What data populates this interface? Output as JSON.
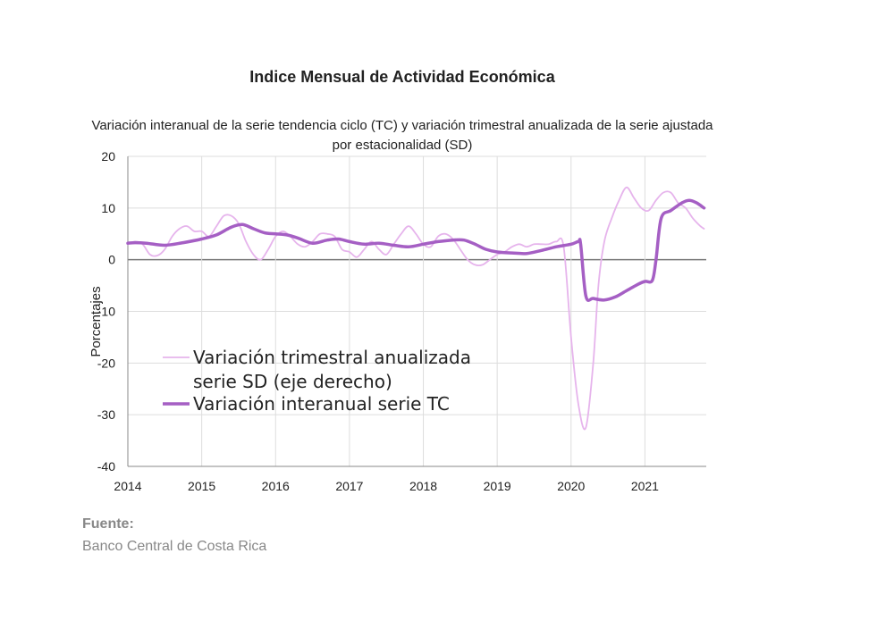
{
  "chart_data": {
    "type": "line",
    "title": "Indice Mensual de  Actividad Económica",
    "subtitle": "Variación interanual de la serie tendencia ciclo (TC) y variación trimestral anualizada de la serie ajustada por estacionalidad (SD)",
    "ylabel": "Porcentajes",
    "xlabel": "",
    "ylim": [
      -40,
      20
    ],
    "xlim": [
      2014.0,
      2021.83
    ],
    "y_ticks": [
      "20",
      "10",
      "0",
      "-10",
      "-20",
      "-30",
      "-40"
    ],
    "x_ticks": [
      "2014",
      "2015",
      "2016",
      "2017",
      "2018",
      "2019",
      "2020",
      "2021"
    ],
    "grid": true,
    "legend_position": "lower-left",
    "series": [
      {
        "name": "Variación trimestral anualizada serie SD (eje derecho)",
        "color": "#e6b4ec",
        "line_width": "thin",
        "x": [
          2014.0,
          2014.1,
          2014.2,
          2014.3,
          2014.4,
          2014.5,
          2014.6,
          2014.7,
          2014.8,
          2014.9,
          2015.0,
          2015.1,
          2015.2,
          2015.3,
          2015.4,
          2015.5,
          2015.6,
          2015.7,
          2015.8,
          2015.9,
          2016.0,
          2016.1,
          2016.2,
          2016.3,
          2016.4,
          2016.5,
          2016.6,
          2016.7,
          2016.8,
          2016.9,
          2017.0,
          2017.1,
          2017.2,
          2017.3,
          2017.4,
          2017.5,
          2017.6,
          2017.7,
          2017.8,
          2017.9,
          2018.0,
          2018.1,
          2018.2,
          2018.3,
          2018.4,
          2018.5,
          2018.6,
          2018.7,
          2018.8,
          2018.9,
          2019.0,
          2019.1,
          2019.2,
          2019.3,
          2019.4,
          2019.5,
          2019.6,
          2019.7,
          2019.8,
          2019.9,
          2020.0,
          2020.1,
          2020.2,
          2020.3,
          2020.37,
          2020.45,
          2020.55,
          2020.65,
          2020.75,
          2020.85,
          2020.95,
          2021.05,
          2021.15,
          2021.25,
          2021.35,
          2021.45,
          2021.55,
          2021.65,
          2021.75,
          2021.8
        ],
        "values": [
          3.0,
          3.5,
          3.0,
          1.0,
          0.8,
          2.0,
          4.5,
          6.0,
          6.5,
          5.5,
          5.5,
          4.5,
          6.5,
          8.5,
          8.5,
          7.0,
          3.5,
          1.0,
          0.0,
          2.0,
          4.5,
          5.5,
          4.5,
          3.0,
          2.5,
          3.5,
          5.0,
          5.0,
          4.5,
          2.0,
          1.5,
          0.5,
          2.0,
          3.5,
          2.0,
          1.0,
          3.0,
          5.0,
          6.5,
          5.0,
          3.0,
          2.5,
          4.5,
          5.0,
          4.0,
          2.0,
          0.0,
          -1.0,
          -1.0,
          0.0,
          1.0,
          1.5,
          2.5,
          3.0,
          2.5,
          3.0,
          3.0,
          3.0,
          3.5,
          2.5,
          -15.0,
          -28.0,
          -32.5,
          -20.0,
          -5.0,
          3.5,
          8.0,
          11.5,
          14.0,
          12.0,
          10.0,
          9.5,
          11.5,
          13.0,
          13.0,
          11.0,
          10.0,
          8.0,
          6.5,
          6.0
        ]
      },
      {
        "name": "Variación interanual serie TC",
        "color": "#a55fc4",
        "line_width": "thick",
        "x": [
          2014.0,
          2014.1,
          2014.25,
          2014.5,
          2014.75,
          2015.0,
          2015.2,
          2015.4,
          2015.55,
          2015.7,
          2015.85,
          2016.0,
          2016.15,
          2016.3,
          2016.5,
          2016.7,
          2016.85,
          2017.0,
          2017.2,
          2017.4,
          2017.6,
          2017.8,
          2018.0,
          2018.2,
          2018.4,
          2018.55,
          2018.7,
          2018.85,
          2019.0,
          2019.2,
          2019.4,
          2019.6,
          2019.8,
          2020.0,
          2020.1,
          2020.13,
          2020.2,
          2020.3,
          2020.45,
          2020.6,
          2020.75,
          2020.9,
          2021.0,
          2021.1,
          2021.15,
          2021.22,
          2021.35,
          2021.5,
          2021.6,
          2021.7,
          2021.8
        ],
        "values": [
          3.2,
          3.3,
          3.2,
          2.8,
          3.3,
          4.0,
          4.8,
          6.3,
          6.8,
          6.0,
          5.2,
          5.0,
          4.8,
          4.2,
          3.2,
          3.8,
          4.0,
          3.5,
          3.0,
          3.2,
          2.8,
          2.5,
          3.0,
          3.5,
          3.8,
          3.8,
          3.0,
          2.0,
          1.5,
          1.3,
          1.2,
          1.8,
          2.5,
          3.0,
          3.5,
          3.0,
          -7.0,
          -7.5,
          -7.8,
          -7.2,
          -6.0,
          -4.8,
          -4.2,
          -4.0,
          0.0,
          8.0,
          9.5,
          11.0,
          11.5,
          11.0,
          10.0
        ]
      }
    ],
    "legend": [
      {
        "line1": "Variación trimestral anualizada",
        "line2": "serie SD (eje derecho)"
      },
      {
        "line1": "Variación interanual serie TC",
        "line2": ""
      }
    ]
  },
  "source": {
    "label": "Fuente:",
    "text": "Banco Central de Costa Rica"
  }
}
